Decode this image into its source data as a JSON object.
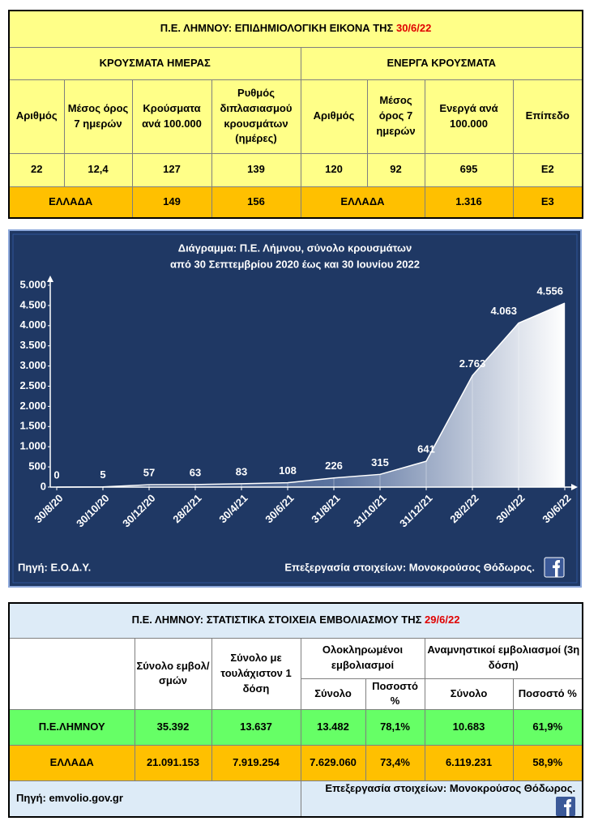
{
  "top_table": {
    "title": "Π.Ε. ΛΗΜΝΟΥ: ΕΠΙΔΗΜΙΟΛΟΓΙΚΗ ΕΙΚΟΝΑ ΤΗΣ",
    "date": "30/6/22",
    "groups": [
      "ΚΡΟΥΣΜΑΤΑ ΗΜΕΡΑΣ",
      "ΕΝΕΡΓΑ ΚΡΟΥΣΜΑΤΑ"
    ],
    "headers": [
      "Αριθμός",
      "Μέσος όρος 7 ημερών",
      "Κρούσματα ανά 100.000",
      "Ρυθμός διπλασιασμού κρουσμάτων (ημέρες)",
      "Αριθμός",
      "Μέσος όρος 7 ημερών",
      "Ενεργά ανά 100.000",
      "Επίπεδο"
    ],
    "rows": [
      [
        "22",
        "12,4",
        "127",
        "139",
        "120",
        "92",
        "695",
        "Ε2"
      ],
      [
        "ΕΛΛΑΔΑ",
        "149",
        "156",
        "ΕΛΛΑΔΑ",
        "1.316",
        "Ε3"
      ]
    ]
  },
  "chart_data": {
    "type": "area",
    "title": "Διάγραμμα:  Π.Ε. Λήμνου, σύνολο κρουσμάτων",
    "subtitle": "από  30 Σεπτεμβρίου 2020 έως και  30 Ιουνίου 2022",
    "categories": [
      "30/8/20",
      "30/10/20",
      "30/12/20",
      "28/2/21",
      "30/4/21",
      "30/6/21",
      "31/8/21",
      "31/10/21",
      "31/12/21",
      "28/2/22",
      "30/4/22",
      "30/6/22"
    ],
    "values": [
      0,
      5,
      57,
      63,
      83,
      108,
      226,
      315,
      641,
      2763,
      4063,
      4556
    ],
    "value_labels": [
      "0",
      "5",
      "57",
      "63",
      "83",
      "108",
      "226",
      "315",
      "641",
      "2.763",
      "4.063",
      "4.556"
    ],
    "ylim": [
      0,
      5000
    ],
    "yticks": [
      0,
      {
        "value": 500,
        "label": "500"
      },
      {
        "value": 1000,
        "label": "1.000"
      },
      {
        "value": 1500,
        "label": "1.500"
      },
      {
        "value": 2000,
        "label": "2.000"
      },
      {
        "value": 2500,
        "label": "2.500"
      },
      {
        "value": 3000,
        "label": "3.000"
      },
      {
        "value": 3500,
        "label": "3.500"
      },
      {
        "value": 4000,
        "label": "4.000"
      },
      {
        "value": 4500,
        "label": "4.500"
      },
      {
        "value": 5000,
        "label": "5.000"
      }
    ],
    "source": "Πηγή: Ε.Ο.Δ.Υ.",
    "credit": "Επεξεργασία στοιχείων: Μονοκρούσος Θόδωρος."
  },
  "bottom_table": {
    "title": "Π.Ε. ΛΗΜΝΟΥ: ΣΤΑΤΙΣΤΙΚΑ ΣΤΟΙΧΕΙΑ ΕΜΒΟΛΙΑΣΜΟΥ ΤΗΣ",
    "date": "29/6/22",
    "headers": [
      "Σύνολο εμβολ/σμών",
      "Σύνολο με τουλάχιστον 1 δόση",
      "Ολοκληρωμένοι εμβολιασμοί",
      "Αναμνηστικοί εμβολιασμοί (3η δόση)"
    ],
    "subheaders": [
      "Σύνολο",
      "Ποσοστό %",
      "Σύνολο",
      "Ποσοστό %"
    ],
    "rows": [
      [
        "Π.Ε.ΛΗΜΝΟΥ",
        "35.392",
        "13.637",
        "13.482",
        "78,1%",
        "10.683",
        "61,9%"
      ],
      [
        "ΕΛΛΑΔΑ",
        "21.091.153",
        "7.919.254",
        "7.629.060",
        "73,4%",
        "6.119.231",
        "58,9%"
      ]
    ],
    "source": "Πηγή: emvolio.gov.gr",
    "credit": "Επεξεργασία στοιχείων: Μονοκρούσος Θόδωρος."
  }
}
